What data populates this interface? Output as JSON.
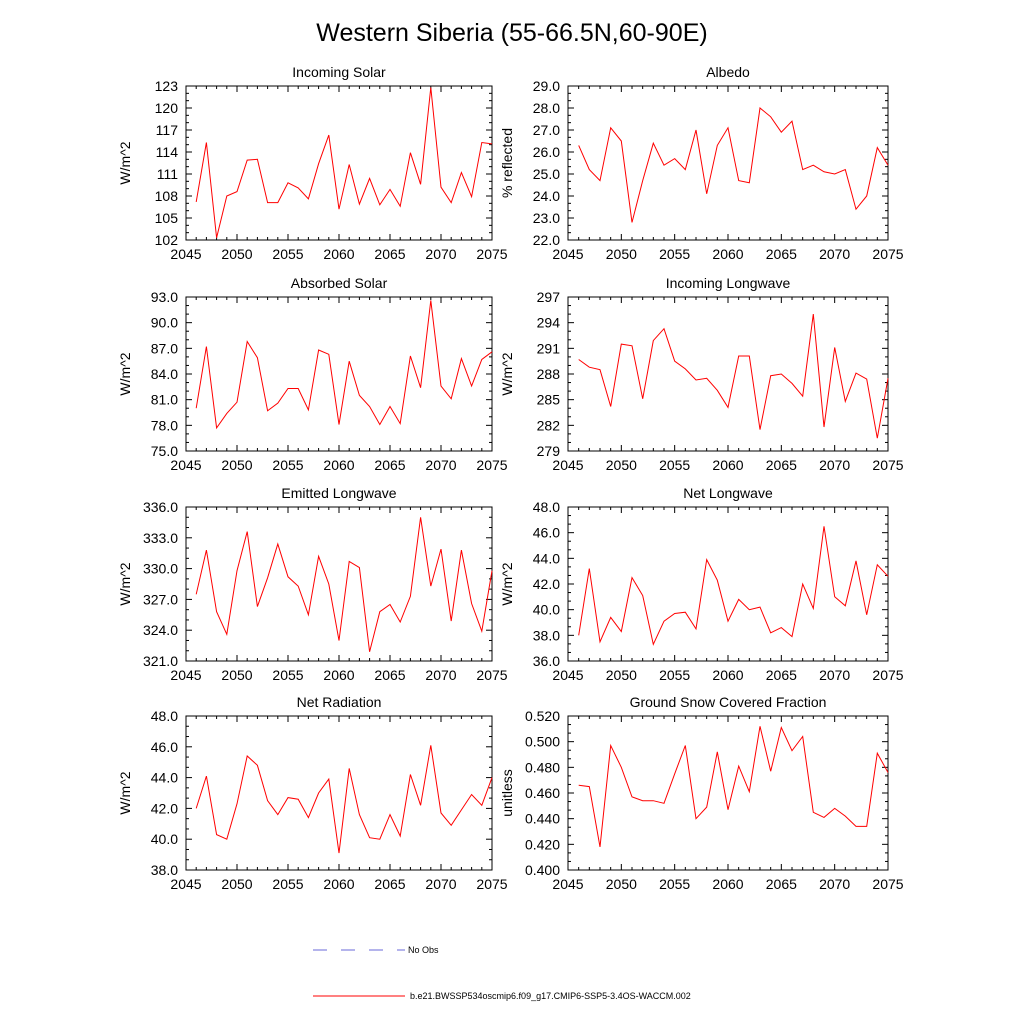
{
  "figure": {
    "title": "Western Siberia (55-66.5N,60-90E)",
    "line_color": "#ff0000",
    "obs_color": "#6a6ad8"
  },
  "legend": {
    "obs_label": "No Obs",
    "model_label": "b.e21.BWSSP534oscmip6.f09_g17.CMIP6-SSP5-3.4OS-WACCM.002"
  },
  "chart_data": [
    {
      "type": "line",
      "title": "Incoming Solar",
      "xlabel": "",
      "ylabel": "W/m^2",
      "xlim": [
        2045,
        2075
      ],
      "ylim": [
        102,
        123
      ],
      "xticks": [
        "2045",
        "2050",
        "2055",
        "2060",
        "2065",
        "2070",
        "2075"
      ],
      "yticks": [
        "102",
        "105",
        "108",
        "111",
        "114",
        "117",
        "120",
        "123"
      ],
      "x": [
        2046,
        2047,
        2048,
        2049,
        2050,
        2051,
        2052,
        2053,
        2054,
        2055,
        2056,
        2057,
        2058,
        2059,
        2060,
        2061,
        2062,
        2063,
        2064,
        2065,
        2066,
        2067,
        2068,
        2069,
        2070,
        2071,
        2072,
        2073,
        2074,
        2075
      ],
      "values": [
        107.2,
        115.3,
        102.3,
        108.0,
        108.6,
        112.9,
        113.0,
        107.1,
        107.1,
        109.8,
        109.1,
        107.6,
        112.4,
        116.3,
        106.2,
        112.3,
        106.9,
        110.4,
        106.8,
        108.9,
        106.6,
        113.9,
        109.6,
        122.8,
        109.2,
        107.1,
        111.2,
        107.9,
        115.3,
        115.1
      ]
    },
    {
      "type": "line",
      "title": "Albedo",
      "xlabel": "",
      "ylabel": "% reflected",
      "xlim": [
        2045,
        2075
      ],
      "ylim": [
        22.0,
        29.0
      ],
      "xticks": [
        "2045",
        "2050",
        "2055",
        "2060",
        "2065",
        "2070",
        "2075"
      ],
      "yticks": [
        "22.0",
        "23.0",
        "24.0",
        "25.0",
        "26.0",
        "27.0",
        "28.0",
        "29.0"
      ],
      "x": [
        2046,
        2047,
        2048,
        2049,
        2050,
        2051,
        2052,
        2053,
        2054,
        2055,
        2056,
        2057,
        2058,
        2059,
        2060,
        2061,
        2062,
        2063,
        2064,
        2065,
        2066,
        2067,
        2068,
        2069,
        2070,
        2071,
        2072,
        2073,
        2074,
        2075
      ],
      "values": [
        26.3,
        25.2,
        24.7,
        27.1,
        26.5,
        22.8,
        24.7,
        26.4,
        25.4,
        25.7,
        25.2,
        27.0,
        24.1,
        26.3,
        27.1,
        24.7,
        24.6,
        28.0,
        27.6,
        26.9,
        27.4,
        25.2,
        25.4,
        25.1,
        25.0,
        25.2,
        23.4,
        24.0,
        26.2,
        25.4
      ]
    },
    {
      "type": "line",
      "title": "Absorbed Solar",
      "xlabel": "",
      "ylabel": "W/m^2",
      "xlim": [
        2045,
        2075
      ],
      "ylim": [
        75.0,
        93.0
      ],
      "xticks": [
        "2045",
        "2050",
        "2055",
        "2060",
        "2065",
        "2070",
        "2075"
      ],
      "yticks": [
        "75.0",
        "78.0",
        "81.0",
        "84.0",
        "87.0",
        "90.0",
        "93.0"
      ],
      "x": [
        2046,
        2047,
        2048,
        2049,
        2050,
        2051,
        2052,
        2053,
        2054,
        2055,
        2056,
        2057,
        2058,
        2059,
        2060,
        2061,
        2062,
        2063,
        2064,
        2065,
        2066,
        2067,
        2068,
        2069,
        2070,
        2071,
        2072,
        2073,
        2074,
        2075
      ],
      "values": [
        80.0,
        87.2,
        77.7,
        79.4,
        80.7,
        87.8,
        85.9,
        79.7,
        80.6,
        82.3,
        82.3,
        79.8,
        86.8,
        86.3,
        78.1,
        85.5,
        81.5,
        80.2,
        78.1,
        80.2,
        78.2,
        86.1,
        82.4,
        92.6,
        82.6,
        81.1,
        85.8,
        82.6,
        85.7,
        86.6
      ]
    },
    {
      "type": "line",
      "title": "Incoming Longwave",
      "xlabel": "",
      "ylabel": "W/m^2",
      "xlim": [
        2045,
        2075
      ],
      "ylim": [
        279,
        297
      ],
      "xticks": [
        "2045",
        "2050",
        "2055",
        "2060",
        "2065",
        "2070",
        "2075"
      ],
      "yticks": [
        "279",
        "282",
        "285",
        "288",
        "291",
        "294",
        "297"
      ],
      "x": [
        2046,
        2047,
        2048,
        2049,
        2050,
        2051,
        2052,
        2053,
        2054,
        2055,
        2056,
        2057,
        2058,
        2059,
        2060,
        2061,
        2062,
        2063,
        2064,
        2065,
        2066,
        2067,
        2068,
        2069,
        2070,
        2071,
        2072,
        2073,
        2074,
        2075
      ],
      "values": [
        289.7,
        288.8,
        288.5,
        284.2,
        291.5,
        291.3,
        285.1,
        291.9,
        293.3,
        289.5,
        288.6,
        287.3,
        287.5,
        286.1,
        284.1,
        290.1,
        290.1,
        281.5,
        287.8,
        288.0,
        286.9,
        285.4,
        295.0,
        281.8,
        291.1,
        284.8,
        288.1,
        287.4,
        280.5,
        287.5
      ]
    },
    {
      "type": "line",
      "title": "Emitted Longwave",
      "xlabel": "",
      "ylabel": "W/m^2",
      "xlim": [
        2045,
        2075
      ],
      "ylim": [
        321.0,
        336.0
      ],
      "xticks": [
        "2045",
        "2050",
        "2055",
        "2060",
        "2065",
        "2070",
        "2075"
      ],
      "yticks": [
        "321.0",
        "324.0",
        "327.0",
        "330.0",
        "333.0",
        "336.0"
      ],
      "x": [
        2046,
        2047,
        2048,
        2049,
        2050,
        2051,
        2052,
        2053,
        2054,
        2055,
        2056,
        2057,
        2058,
        2059,
        2060,
        2061,
        2062,
        2063,
        2064,
        2065,
        2066,
        2067,
        2068,
        2069,
        2070,
        2071,
        2072,
        2073,
        2074,
        2075
      ],
      "values": [
        327.5,
        331.8,
        325.8,
        323.6,
        329.8,
        333.6,
        326.3,
        329.1,
        332.4,
        329.2,
        328.3,
        325.5,
        331.2,
        328.5,
        323.0,
        330.7,
        330.1,
        321.9,
        325.8,
        326.5,
        324.8,
        327.3,
        335.0,
        328.3,
        331.9,
        324.9,
        331.8,
        326.6,
        323.9,
        329.8
      ]
    },
    {
      "type": "line",
      "title": "Net Longwave",
      "xlabel": "",
      "ylabel": "W/m^2",
      "xlim": [
        2045,
        2075
      ],
      "ylim": [
        36.0,
        48.0
      ],
      "xticks": [
        "2045",
        "2050",
        "2055",
        "2060",
        "2065",
        "2070",
        "2075"
      ],
      "yticks": [
        "36.0",
        "38.0",
        "40.0",
        "42.0",
        "44.0",
        "46.0",
        "48.0"
      ],
      "x": [
        2046,
        2047,
        2048,
        2049,
        2050,
        2051,
        2052,
        2053,
        2054,
        2055,
        2056,
        2057,
        2058,
        2059,
        2060,
        2061,
        2062,
        2063,
        2064,
        2065,
        2066,
        2067,
        2068,
        2069,
        2070,
        2071,
        2072,
        2073,
        2074,
        2075
      ],
      "values": [
        38.0,
        43.2,
        37.5,
        39.4,
        38.3,
        42.5,
        41.1,
        37.3,
        39.1,
        39.7,
        39.8,
        38.5,
        43.9,
        42.3,
        39.1,
        40.8,
        40.0,
        40.2,
        38.2,
        38.6,
        37.9,
        42.0,
        40.1,
        46.5,
        41.0,
        40.3,
        43.8,
        39.6,
        43.5,
        42.6
      ]
    },
    {
      "type": "line",
      "title": "Net Radiation",
      "xlabel": "",
      "ylabel": "W/m^2",
      "xlim": [
        2045,
        2075
      ],
      "ylim": [
        38.0,
        48.0
      ],
      "xticks": [
        "2045",
        "2050",
        "2055",
        "2060",
        "2065",
        "2070",
        "2075"
      ],
      "yticks": [
        "38.0",
        "40.0",
        "42.0",
        "44.0",
        "46.0",
        "48.0"
      ],
      "x": [
        2046,
        2047,
        2048,
        2049,
        2050,
        2051,
        2052,
        2053,
        2054,
        2055,
        2056,
        2057,
        2058,
        2059,
        2060,
        2061,
        2062,
        2063,
        2064,
        2065,
        2066,
        2067,
        2068,
        2069,
        2070,
        2071,
        2072,
        2073,
        2074,
        2075
      ],
      "values": [
        42.0,
        44.1,
        40.3,
        40.0,
        42.3,
        45.4,
        44.8,
        42.5,
        41.6,
        42.7,
        42.6,
        41.4,
        43.0,
        43.9,
        39.1,
        44.6,
        41.6,
        40.1,
        40.0,
        41.6,
        40.2,
        44.2,
        42.2,
        46.1,
        41.7,
        40.9,
        41.9,
        42.9,
        42.2,
        44.0
      ]
    },
    {
      "type": "line",
      "title": "Ground Snow Covered Fraction",
      "xlabel": "",
      "ylabel": "unitless",
      "xlim": [
        2045,
        2075
      ],
      "ylim": [
        0.4,
        0.52
      ],
      "xticks": [
        "2045",
        "2050",
        "2055",
        "2060",
        "2065",
        "2070",
        "2075"
      ],
      "yticks": [
        "0.400",
        "0.420",
        "0.440",
        "0.460",
        "0.480",
        "0.500",
        "0.520"
      ],
      "x": [
        2046,
        2047,
        2048,
        2049,
        2050,
        2051,
        2052,
        2053,
        2054,
        2055,
        2056,
        2057,
        2058,
        2059,
        2060,
        2061,
        2062,
        2063,
        2064,
        2065,
        2066,
        2067,
        2068,
        2069,
        2070,
        2071,
        2072,
        2073,
        2074,
        2075
      ],
      "values": [
        0.466,
        0.465,
        0.418,
        0.497,
        0.48,
        0.457,
        0.454,
        0.454,
        0.452,
        0.475,
        0.497,
        0.44,
        0.449,
        0.492,
        0.447,
        0.481,
        0.461,
        0.512,
        0.477,
        0.511,
        0.493,
        0.504,
        0.445,
        0.441,
        0.448,
        0.442,
        0.434,
        0.434,
        0.491,
        0.476
      ]
    }
  ]
}
